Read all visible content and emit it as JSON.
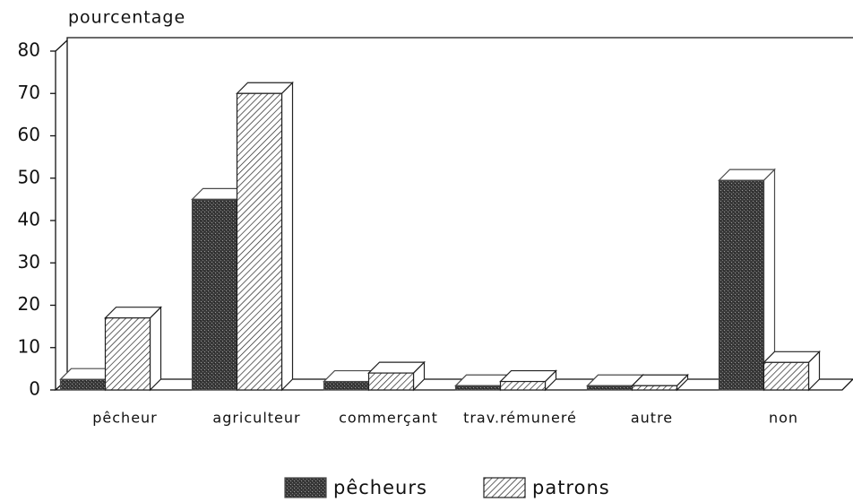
{
  "chart_data": {
    "type": "bar3d",
    "ylabel": "pourcentage",
    "categories": [
      "pêcheur",
      "agriculteur",
      "commerçant",
      "trav.rémuneré",
      "autre",
      "non"
    ],
    "series": [
      {
        "name": "pêcheurs",
        "color": "#4a4a4a",
        "pattern": "stipple",
        "values": [
          2.5,
          45,
          2,
          1,
          1,
          49.5
        ]
      },
      {
        "name": "patrons",
        "color": "#222222",
        "pattern": "hatch",
        "values": [
          17,
          70,
          4,
          2,
          1,
          6.5
        ]
      }
    ],
    "ylim": [
      0,
      80
    ],
    "yticks": [
      0,
      10,
      20,
      30,
      40,
      50,
      60,
      70,
      80
    ],
    "grid": false
  }
}
